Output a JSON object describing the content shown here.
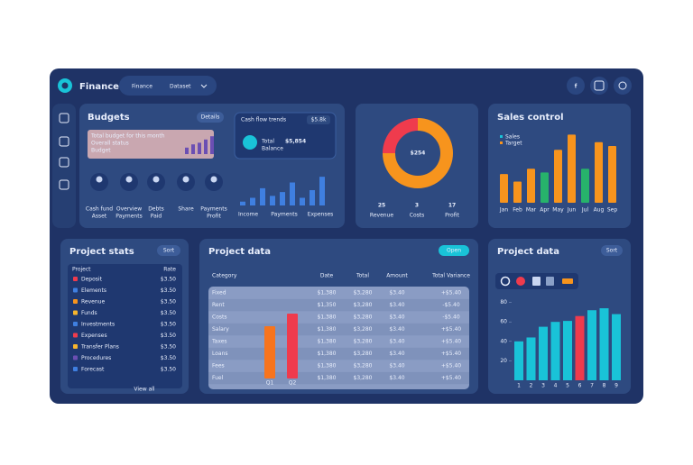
{
  "header": {
    "brand": "Finance",
    "menu": "Finance",
    "menu_value": "Dataset",
    "social_icon": "f"
  },
  "budgets": {
    "title": "Budgets",
    "button": "Details",
    "note": [
      "Total budget for this month",
      "Overall status",
      "Budget"
    ],
    "note_bars": [
      4,
      6,
      7,
      9,
      11
    ],
    "people": [
      "Cash fund",
      "Overview",
      "Debts",
      "Share",
      "Payments"
    ],
    "people_sub": [
      "Asset",
      "Payments",
      "Paid",
      "",
      "Profit"
    ]
  },
  "cash_flow": {
    "title": "Cash flow trends",
    "badge": "$5.8k",
    "amount": "$5,854",
    "sub": [
      "Total",
      "Balance"
    ],
    "bars": [
      4,
      8,
      18,
      10,
      14,
      24,
      8,
      16,
      30
    ],
    "ylim": [
      0,
      32
    ],
    "labels": [
      "Income",
      "Payments",
      "Expenses"
    ]
  },
  "donut": {
    "center": "$254",
    "values": [
      75,
      25
    ],
    "colors": [
      "#f7941d",
      "#ef3b4d"
    ],
    "stats": [
      {
        "value": "25",
        "label": "Revenue"
      },
      {
        "value": "3",
        "label": "Costs"
      },
      {
        "value": "17",
        "label": "Profit"
      }
    ]
  },
  "sales": {
    "title": "Sales control",
    "legend": [
      "Sales",
      "Target"
    ],
    "values": [
      38,
      28,
      45,
      40,
      70,
      90,
      45,
      80,
      75
    ],
    "colors": [
      "#f7941d",
      "#f7941d",
      "#f7941d",
      "#27b26b",
      "#f7941d",
      "#f7941d",
      "#27b26b",
      "#f7941d",
      "#f7941d"
    ],
    "ylim": [
      0,
      100
    ],
    "categories": [
      "Jan",
      "Feb",
      "Mar",
      "Apr",
      "May",
      "Jun",
      "Jul",
      "Aug",
      "Sep"
    ]
  },
  "stats": {
    "title": "Project stats",
    "button": "Sort",
    "columns": [
      "Project",
      "Rate"
    ],
    "rows": [
      [
        "Deposit",
        "$3.50"
      ],
      [
        "Elements",
        "$3.50"
      ],
      [
        "Revenue",
        "$3.50"
      ],
      [
        "Funds",
        "$3.50"
      ],
      [
        "Investments",
        "$3.50"
      ],
      [
        "Expenses",
        "$3.50"
      ],
      [
        "Transfer Plans",
        "$3.50"
      ],
      [
        "Procedures",
        "$3.50"
      ],
      [
        "Forecast",
        "$3.50"
      ]
    ],
    "footer": "View all"
  },
  "table": {
    "title": "Project data",
    "button": "Open",
    "columns": [
      "Category",
      "Date",
      "Total",
      "Amount",
      "Total Variance"
    ],
    "rows": [
      [
        "Fixed",
        "$1,380",
        "$3,280",
        "$3.40",
        "+$5.40"
      ],
      [
        "Rent",
        "$1,350",
        "$3,280",
        "$3.40",
        "-$5.40"
      ],
      [
        "Costs",
        "$1,380",
        "$3,280",
        "$3.40",
        "-$5.40"
      ],
      [
        "Salary",
        "$1,380",
        "$3,280",
        "$3.40",
        "+$5.40"
      ],
      [
        "Taxes",
        "$1,380",
        "$3,280",
        "$3.40",
        "+$5.40"
      ],
      [
        "Loans",
        "$1,380",
        "$3,280",
        "$3.40",
        "+$5.40"
      ],
      [
        "Fees",
        "$1,380",
        "$3,280",
        "$3.40",
        "+$5.40"
      ],
      [
        "Fuel",
        "$1,380",
        "$3,280",
        "$3.40",
        "+$5.40"
      ]
    ],
    "bars": [
      58,
      72
    ],
    "bar_colors": [
      "#f7741d",
      "#ef3b4d"
    ],
    "ylim": [
      0,
      100
    ],
    "bar_labels": [
      "Q1",
      "Q2"
    ]
  },
  "chart2": {
    "title": "Project data",
    "button": "Sort",
    "values": [
      40,
      44,
      55,
      60,
      61,
      66,
      72,
      74,
      68
    ],
    "colors": [
      "#19c3d8",
      "#19c3d8",
      "#19c3d8",
      "#19c3d8",
      "#19c3d8",
      "#ef3b4d",
      "#19c3d8",
      "#19c3d8",
      "#19c3d8"
    ],
    "ylim": [
      0,
      100
    ],
    "yticks": [
      20,
      40,
      60,
      80
    ],
    "categories": [
      "1",
      "2",
      "3",
      "4",
      "5",
      "6",
      "7",
      "8",
      "9"
    ]
  }
}
